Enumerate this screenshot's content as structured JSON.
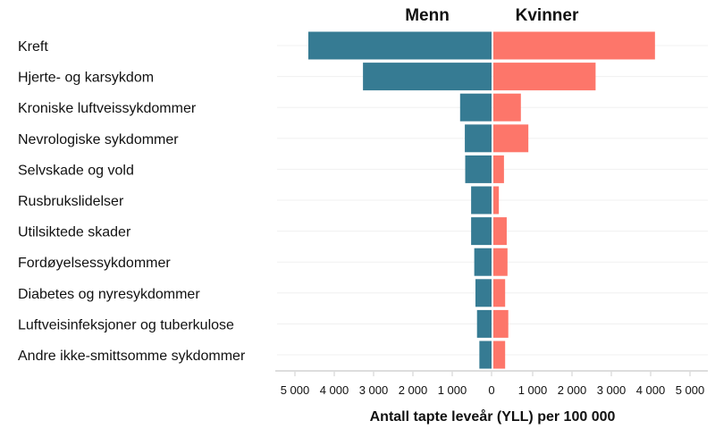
{
  "chart_data": {
    "type": "bar",
    "orientation": "horizontal-butterfly",
    "xlabel": "Antall tapte leveår (YLL) per 100 000",
    "categories": [
      "Kreft",
      "Hjerte- og karsykdom",
      "Kroniske luftveissykdommer",
      "Nevrologiske sykdommer",
      "Selvskade og vold",
      "Rusbrukslidelser",
      "Utilsiktede skader",
      "Fordøyelsessykdommer",
      "Diabetes og nyresykdommer",
      "Luftveisinfeksjoner og tuberkulose",
      "Andre ikke-smittsomme sykdommer"
    ],
    "series": [
      {
        "name": "Menn",
        "color": "#367b93",
        "values": [
          4660,
          3270,
          800,
          680,
          670,
          520,
          520,
          440,
          410,
          370,
          310
        ]
      },
      {
        "name": "Kvinner",
        "color": "#fd766a",
        "values": [
          4110,
          2600,
          700,
          890,
          270,
          140,
          340,
          360,
          300,
          380,
          300
        ]
      }
    ],
    "xlim": [
      0,
      5000
    ],
    "ticks": [
      0,
      1000,
      2000,
      3000,
      4000,
      5000
    ],
    "tick_labels": [
      "0",
      "1 000",
      "2 000",
      "3 000",
      "4 000",
      "5 000"
    ],
    "grid": true
  }
}
